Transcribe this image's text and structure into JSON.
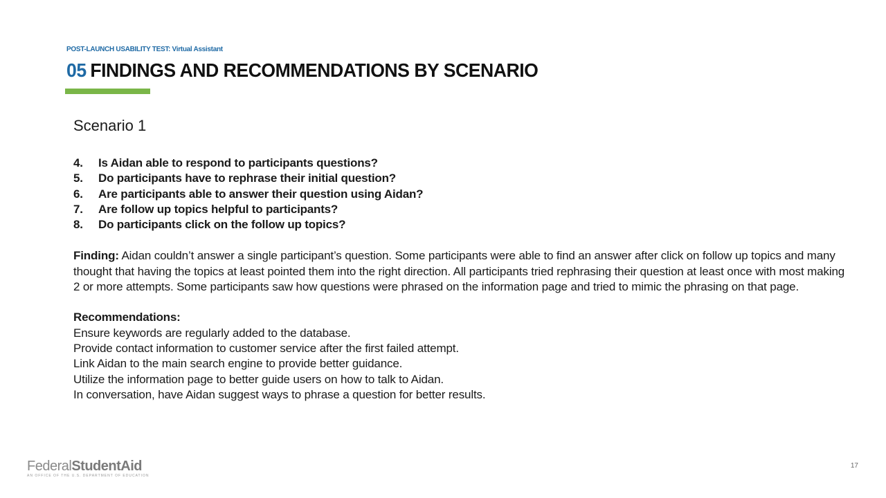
{
  "header": {
    "eyebrow": "POST-LAUNCH USABILITY TEST: Virtual Assistant",
    "section_number": "05",
    "title": "FINDINGS AND RECOMMENDATIONS BY SCENARIO"
  },
  "scenario": {
    "heading": "Scenario 1",
    "questions": [
      {
        "num": "4.",
        "text": "Is Aidan able to respond to participants questions?"
      },
      {
        "num": "5.",
        "text": "Do participants have to rephrase their initial question?"
      },
      {
        "num": "6.",
        "text": "Are participants able to answer their question using Aidan?"
      },
      {
        "num": "7.",
        "text": "Are follow up topics helpful to participants?"
      },
      {
        "num": "8.",
        "text": "Do participants click on the follow up topics?"
      }
    ],
    "finding": {
      "label": "Finding:",
      "text": " Aidan couldn’t answer a single participant’s question. Some participants were able to find an answer after click on follow up topics and many thought that having the topics at least pointed them into the right direction.  All participants tried rephrasing their question at least once with most making 2 or more attempts. Some participants saw how questions were phrased on the information page and tried to mimic the phrasing on that page."
    },
    "recommendations": {
      "label": "Recommendations:",
      "items": [
        "Ensure keywords are regularly added to the database.",
        "Provide contact information to customer service after the first failed attempt.",
        "Link Aidan to the main search engine to provide better guidance.",
        "Utilize the information page to better guide users on how to talk to Aidan.",
        "In conversation, have Aidan suggest  ways to phrase a question for better results."
      ]
    }
  },
  "footer": {
    "logo_regular": "Federal",
    "logo_bold": "StudentAid",
    "logo_tagline": "An Office of the U.S. Department of Education",
    "page_number": "17"
  },
  "colors": {
    "accent_blue": "#1f6aa5",
    "accent_green": "#7ab648",
    "text": "#1a1a1a"
  }
}
